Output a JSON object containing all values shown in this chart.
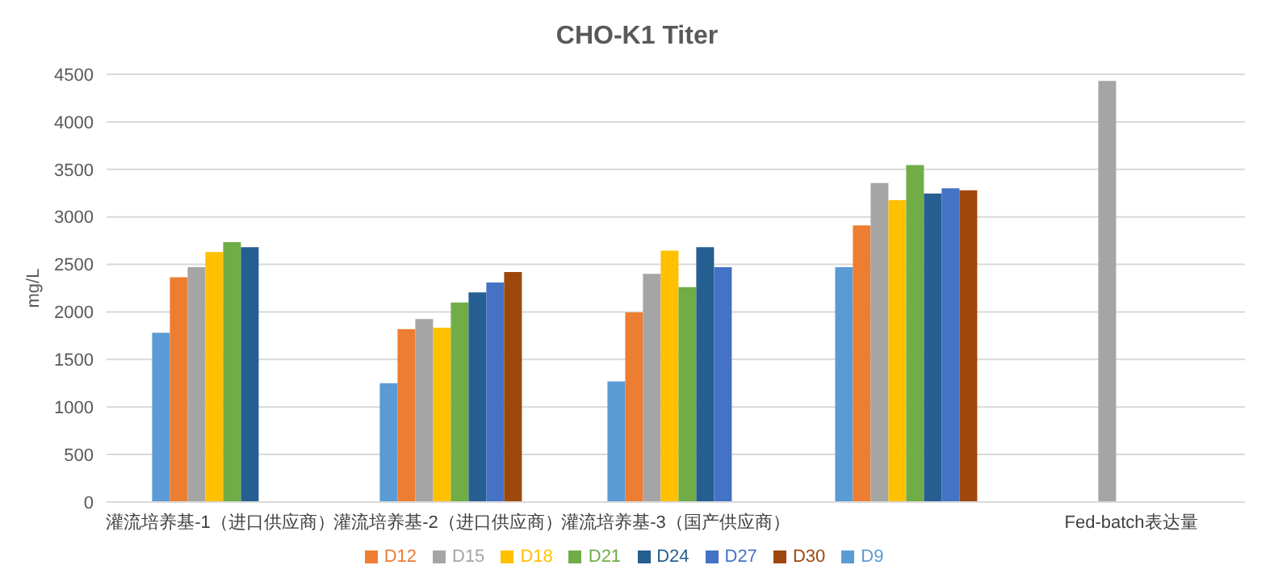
{
  "chart_data": {
    "type": "bar",
    "title": "CHO-K1 Titer",
    "ylabel": "mg/L",
    "categories": [
      "灌流培养基-1（进口供应商）",
      "灌流培养基-2（进口供应商）",
      "灌流培养基-3（国产供应商）",
      null,
      "Fed-batch表达量"
    ],
    "series": [
      {
        "name": "D9",
        "color": "#5b9bd5",
        "values": [
          1780,
          1250,
          1270,
          2470,
          null
        ]
      },
      {
        "name": "D12",
        "color": "#ed7d31",
        "values": [
          2365,
          1820,
          1995,
          2910,
          null
        ]
      },
      {
        "name": "D15",
        "color": "#a5a5a5",
        "values": [
          2470,
          1925,
          2400,
          3355,
          4430
        ]
      },
      {
        "name": "D18",
        "color": "#ffc000",
        "values": [
          2630,
          1835,
          2645,
          3175,
          null
        ]
      },
      {
        "name": "D21",
        "color": "#70ad47",
        "values": [
          2735,
          2100,
          2260,
          3545,
          null
        ]
      },
      {
        "name": "D24",
        "color": "#255e91",
        "values": [
          2680,
          2205,
          2680,
          3245,
          null
        ]
      },
      {
        "name": "D27",
        "color": "#4472c4",
        "values": [
          null,
          2310,
          2470,
          3300,
          null
        ]
      },
      {
        "name": "D30",
        "color": "#9e480e",
        "values": [
          null,
          2420,
          null,
          3280,
          null
        ]
      }
    ],
    "ylim": [
      0,
      4500
    ],
    "yticks": [
      0,
      500,
      1000,
      1500,
      2000,
      2500,
      3000,
      3500,
      4000,
      4500
    ],
    "grid": "y",
    "legend": "bottom"
  }
}
